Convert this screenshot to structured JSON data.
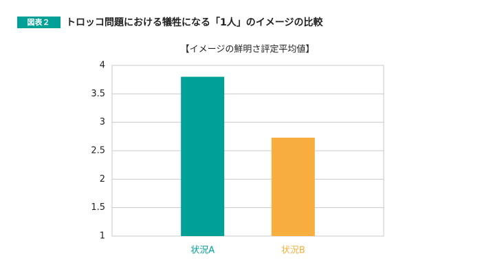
{
  "figure_label": "図表２",
  "chart_data": {
    "type": "bar",
    "title": "トロッコ問題における犠牲になる「1人」のイメージの比較",
    "subtitle": "【イメージの鮮明さ評定平均値】",
    "categories": [
      "状況A",
      "状況B"
    ],
    "values": [
      3.8,
      2.73
    ],
    "colors": [
      "#00a096",
      "#f7ae3f"
    ],
    "ylim": [
      1,
      4
    ],
    "yticks": [
      1,
      1.5,
      2,
      2.5,
      3,
      3.5,
      4
    ],
    "grid": true
  }
}
